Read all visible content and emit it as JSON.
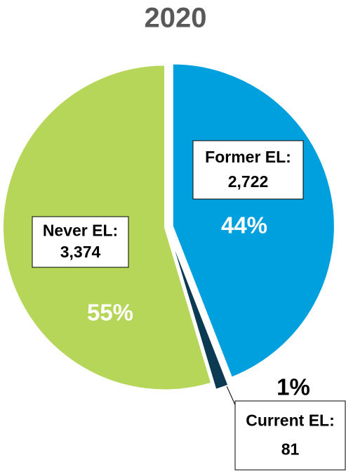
{
  "chart_data": {
    "type": "pie",
    "title": "2020",
    "categories": [
      "Former EL:",
      "Current EL:",
      "Never EL:"
    ],
    "values": [
      2722,
      81,
      3374
    ],
    "value_labels": [
      "2,722",
      "81",
      "3,374"
    ],
    "percent_labels": [
      "44%",
      "1%",
      "55%"
    ],
    "colors": [
      "#00a0df",
      "#0b3a52",
      "#b6d659"
    ]
  }
}
